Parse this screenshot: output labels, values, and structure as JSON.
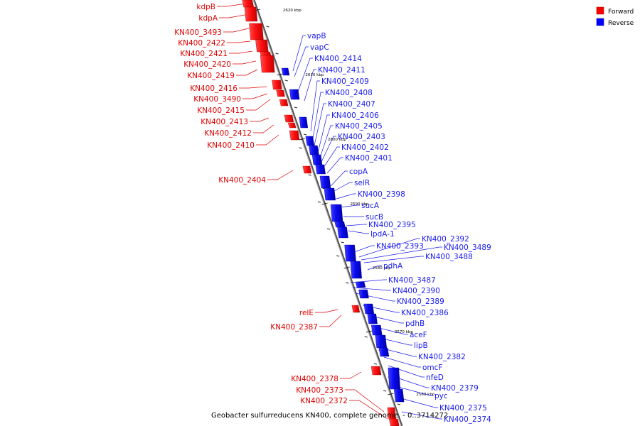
{
  "legend": {
    "forward": {
      "label": "Forward",
      "color": "#ff0000"
    },
    "reverse": {
      "label": "Reverse",
      "color": "#0000ff"
    }
  },
  "caption": "Geobacter sulfurreducens KN400, complete genome. - 0..3714272",
  "ticks": [
    "2620 kbp",
    "2610 kbp",
    "2600 kbp",
    "2590 kbp",
    "2580 kbp",
    "2570 kbp",
    "2560 kbp"
  ],
  "forward_genes": [
    "kdpB",
    "kdpA",
    "KN400_3493",
    "KN400_2422",
    "KN400_2421",
    "KN400_2420",
    "KN400_2419",
    "KN400_2416",
    "KN400_3490",
    "KN400_2415",
    "KN400_2413",
    "KN400_2412",
    "KN400_2410",
    "KN400_2404",
    "relE",
    "KN400_2387",
    "KN400_2378",
    "KN400_2373",
    "KN400_2372"
  ],
  "reverse_genes": [
    "vapB",
    "vapC",
    "KN400_2414",
    "KN400_2411",
    "KN400_2409",
    "KN400_2408",
    "KN400_2407",
    "KN400_2406",
    "KN400_2405",
    "KN400_2403",
    "KN400_2402",
    "KN400_2401",
    "copA",
    "selR",
    "KN400_2398",
    "sucA",
    "sucB",
    "KN400_2395",
    "lpdA-1",
    "KN400_2393",
    "KN400_2392",
    "KN400_3489",
    "KN400_3488",
    "pdhA",
    "KN400_3487",
    "KN400_2390",
    "KN400_2389",
    "KN400_2386",
    "pdhB",
    "aceF",
    "lipB",
    "KN400_2382",
    "omcF",
    "nfeD",
    "KN400_2379",
    "pyc",
    "KN400_2375",
    "KN400_2374"
  ]
}
